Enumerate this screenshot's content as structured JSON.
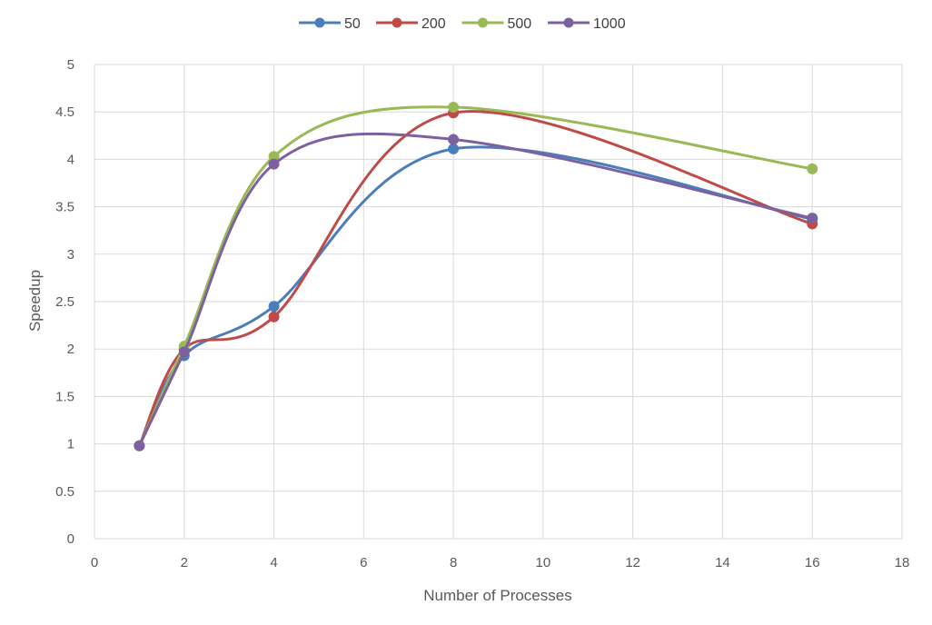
{
  "chart_data": {
    "type": "line",
    "title": "",
    "xlabel": "Number of Processes",
    "ylabel": "Speedup",
    "xlim": [
      0,
      18
    ],
    "ylim": [
      0,
      5
    ],
    "x_ticks": [
      "0",
      "2",
      "4",
      "6",
      "8",
      "10",
      "12",
      "14",
      "16",
      "18"
    ],
    "y_ticks": [
      "0",
      "0.5",
      "1",
      "1.5",
      "2",
      "2.5",
      "3",
      "3.5",
      "4",
      "4.5",
      "5"
    ],
    "grid": true,
    "legend_position": "top",
    "x": [
      1,
      2,
      4,
      8,
      16
    ],
    "series": [
      {
        "name": "50",
        "color": "#4a7ebb",
        "values": [
          0.98,
          1.93,
          2.45,
          4.11,
          3.37
        ]
      },
      {
        "name": "200",
        "color": "#be4b48",
        "values": [
          0.98,
          2.0,
          2.34,
          4.49,
          3.32
        ]
      },
      {
        "name": "500",
        "color": "#98b954",
        "values": [
          0.98,
          2.03,
          4.03,
          4.55,
          3.9
        ]
      },
      {
        "name": "1000",
        "color": "#7d60a0",
        "values": [
          0.98,
          1.97,
          3.95,
          4.21,
          3.38
        ]
      }
    ]
  }
}
